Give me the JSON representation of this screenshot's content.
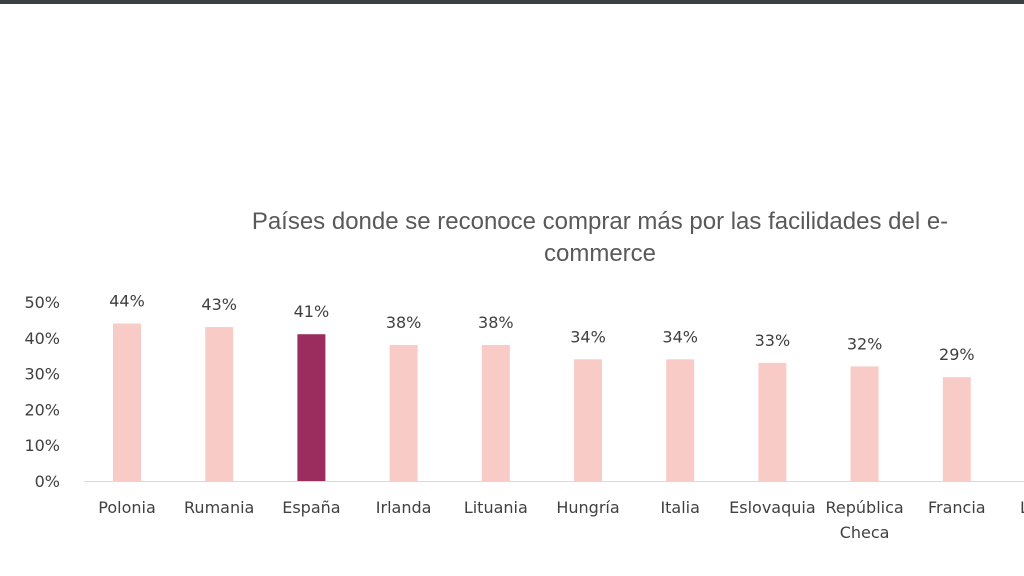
{
  "chart_data": {
    "type": "bar",
    "title": "Países donde se reconoce comprar más por las facilidades del e-commerce",
    "title_lines": [
      "Países donde se reconoce comprar más por las facilidades del e-",
      "commerce"
    ],
    "categories": [
      "Polonia",
      "Rumania",
      "España",
      "Irlanda",
      "Lituania",
      "Hungría",
      "Italia",
      "Eslovaquia",
      "República Checa",
      "Francia",
      "L"
    ],
    "values": [
      44,
      43,
      41,
      38,
      38,
      34,
      34,
      33,
      32,
      29,
      null
    ],
    "data_labels": [
      "44%",
      "43%",
      "41%",
      "38%",
      "38%",
      "34%",
      "34%",
      "33%",
      "32%",
      "29%",
      ""
    ],
    "highlight_category": "España",
    "yticks": [
      "0%",
      "10%",
      "20%",
      "30%",
      "40%",
      "50%"
    ],
    "ylim": [
      0,
      50
    ],
    "grid": false,
    "legend": "none",
    "colors": {
      "bar": "#f8cbc6",
      "highlight": "#9b2d5e",
      "text": "#404040",
      "axis": "#d9d9d9"
    }
  }
}
